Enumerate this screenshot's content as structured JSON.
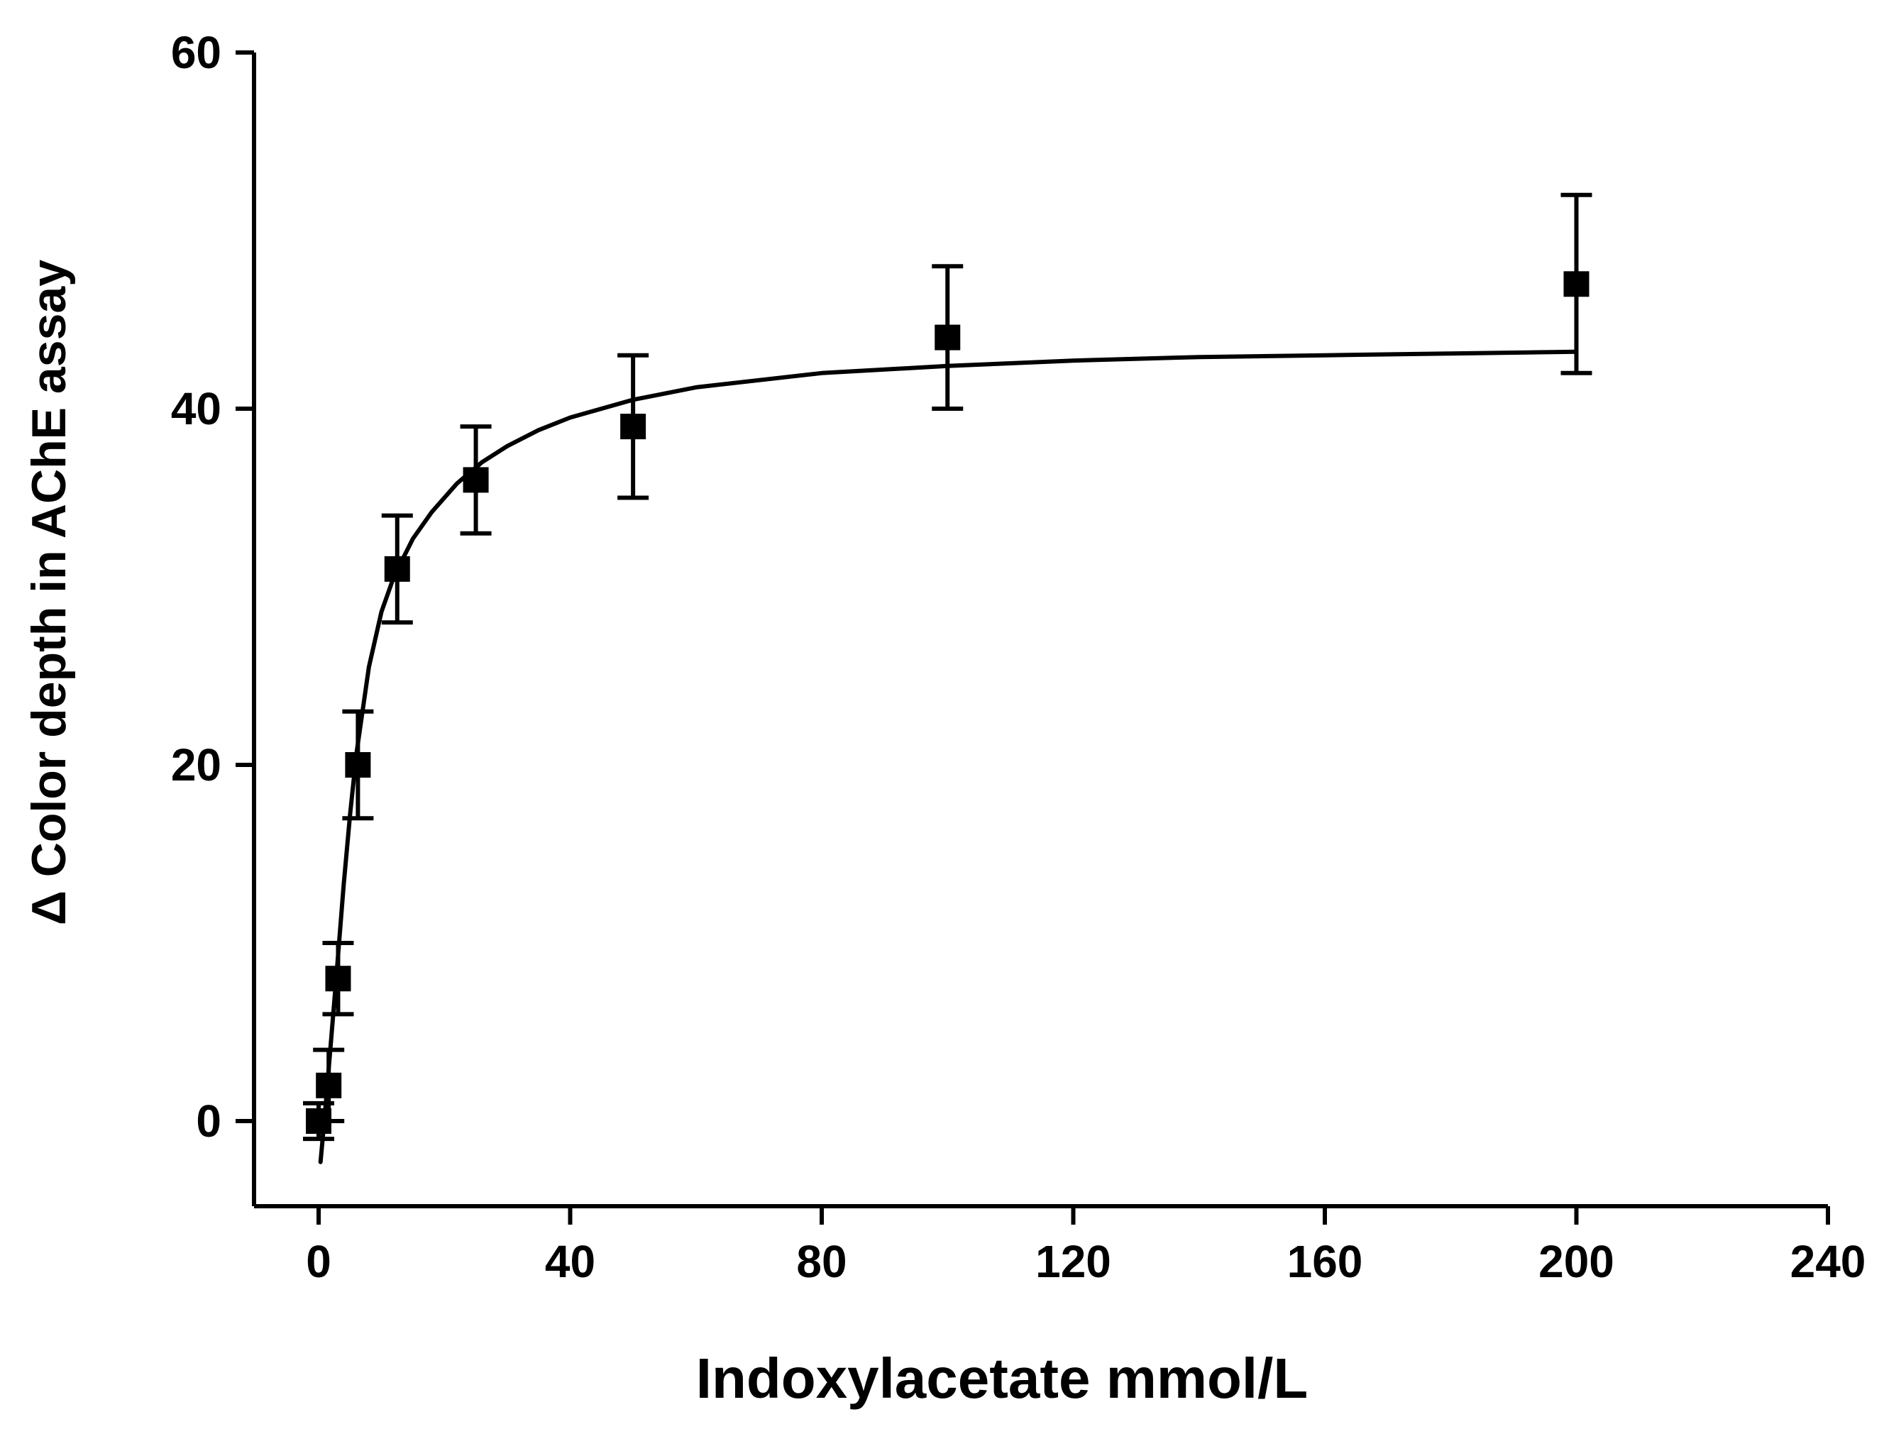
{
  "chart_data": {
    "type": "scatter",
    "title": "",
    "xlabel": "Indoxylacetate mmol/L",
    "ylabel": "Δ Color depth in AChE assay",
    "xlim": [
      -10,
      240
    ],
    "ylim": [
      -5,
      60
    ],
    "xticks": [
      0,
      40,
      80,
      120,
      160,
      200,
      240
    ],
    "yticks": [
      0,
      20,
      40,
      60
    ],
    "x_tick_labels": [
      "0",
      "40",
      "80",
      "120",
      "160",
      "200",
      "240"
    ],
    "y_tick_labels": [
      "0",
      "20",
      "40",
      "60"
    ],
    "grid": false,
    "legend": "none",
    "series": [
      {
        "name": "measured",
        "marker": "square",
        "x": [
          0,
          1.6,
          3.1,
          6.25,
          12.5,
          25,
          50,
          100,
          200
        ],
        "y": [
          0,
          2,
          8,
          20,
          31,
          36,
          39,
          44,
          47
        ],
        "error": [
          1,
          2,
          2,
          3,
          3,
          3,
          4,
          4,
          5
        ]
      },
      {
        "name": "fit",
        "marker": "none",
        "x": [
          0.3,
          1,
          2,
          3,
          4,
          5,
          6,
          8,
          10,
          12,
          15,
          18,
          22,
          26,
          30,
          35,
          40,
          50,
          60,
          70,
          80,
          100,
          120,
          140,
          160,
          180,
          200
        ],
        "y": [
          -2.3,
          0.4,
          4.6,
          8.9,
          13.3,
          17.2,
          20.6,
          25.5,
          28.6,
          30.6,
          32.7,
          34.2,
          35.8,
          37.0,
          37.9,
          38.8,
          39.5,
          40.5,
          41.2,
          41.6,
          42.0,
          42.4,
          42.7,
          42.9,
          43.0,
          43.1,
          43.2
        ]
      }
    ],
    "colors": {
      "axis": "#000000",
      "marker": "#000000",
      "line": "#000000"
    }
  }
}
